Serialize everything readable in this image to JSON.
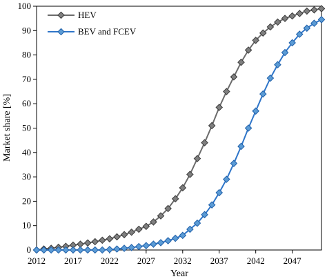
{
  "chart_data": {
    "type": "line",
    "title": "",
    "xlabel": "Year",
    "ylabel": "Market share [%]",
    "xlim": [
      2012,
      2051
    ],
    "ylim": [
      0,
      100
    ],
    "xticks": [
      "2012",
      "2017",
      "2022",
      "2027",
      "2032",
      "2037",
      "2042",
      "2047"
    ],
    "yticks": [
      "0",
      "10",
      "20",
      "30",
      "40",
      "50",
      "60",
      "70",
      "80",
      "90",
      "100"
    ],
    "grid": false,
    "legend_position": "top-left",
    "x": [
      2012,
      2013,
      2014,
      2015,
      2016,
      2017,
      2018,
      2019,
      2020,
      2021,
      2022,
      2023,
      2024,
      2025,
      2026,
      2027,
      2028,
      2029,
      2030,
      2031,
      2032,
      2033,
      2034,
      2035,
      2036,
      2037,
      2038,
      2039,
      2040,
      2041,
      2042,
      2043,
      2044,
      2045,
      2046,
      2047,
      2048,
      2049,
      2050,
      2051
    ],
    "series": [
      {
        "name": "HEV",
        "color": "#6b6b6b",
        "marker_fill": "#7f7f7f",
        "values": [
          0,
          0.4,
          0.7,
          1.1,
          1.5,
          2.0,
          2.4,
          2.9,
          3.4,
          4.0,
          4.6,
          5.4,
          6.3,
          7.3,
          8.5,
          9.7,
          11.5,
          14.0,
          17.0,
          21.0,
          25.5,
          31.0,
          37.5,
          44.0,
          51.0,
          58.5,
          65.0,
          71.0,
          77.0,
          82.0,
          86.0,
          89.0,
          91.5,
          93.5,
          95.0,
          96.0,
          97.0,
          98.0,
          98.5,
          99.0
        ]
      },
      {
        "name": "BEV and FCEV",
        "color": "#2e75c9",
        "marker_fill": "#5b9bd5",
        "values": [
          0,
          0,
          0,
          0,
          0,
          0,
          0,
          0,
          0,
          0,
          0.2,
          0.4,
          0.7,
          1.0,
          1.4,
          1.8,
          2.4,
          3.0,
          3.8,
          4.8,
          6.0,
          8.5,
          11.0,
          14.5,
          18.5,
          23.5,
          29.0,
          35.5,
          42.5,
          50.0,
          57.0,
          64.0,
          70.5,
          76.0,
          81.0,
          85.0,
          88.5,
          91.0,
          93.0,
          94.5
        ]
      }
    ]
  }
}
